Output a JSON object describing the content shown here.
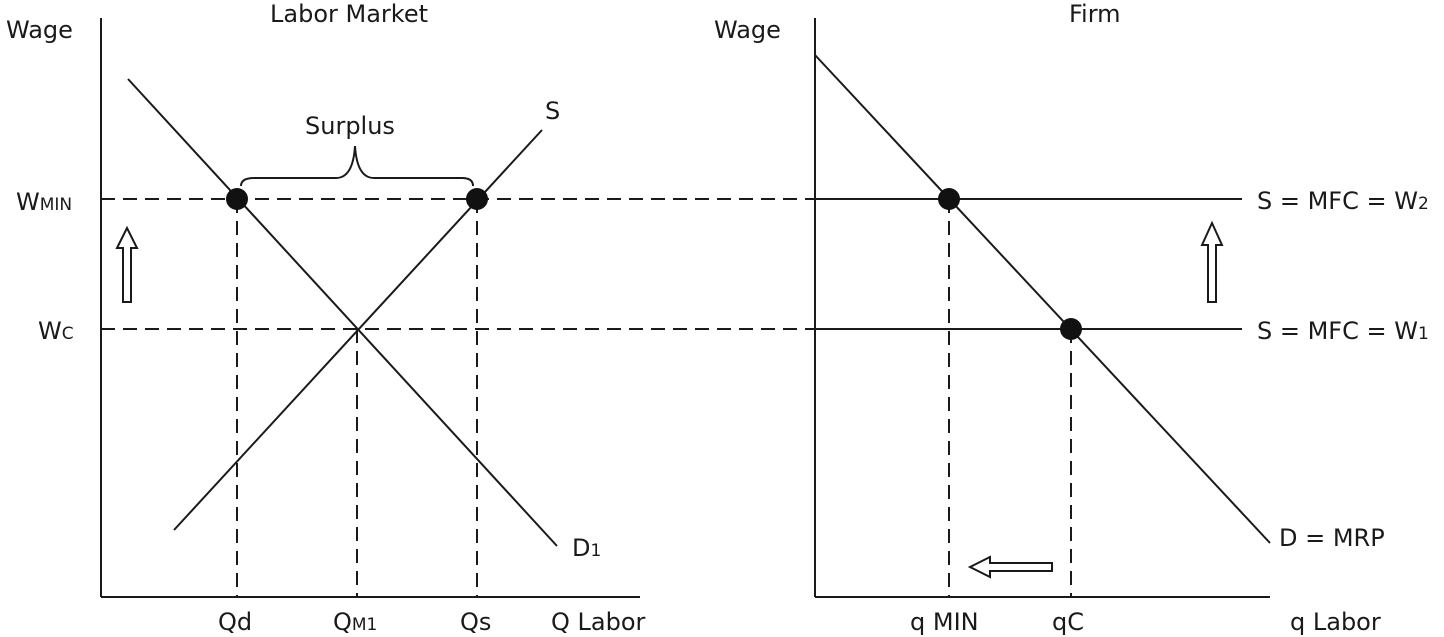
{
  "left_panel": {
    "title": "Labor Market",
    "y_axis_label": "Wage",
    "x_axis_label": "Q Labor",
    "w_min_main": "W",
    "w_min_sub": "MIN",
    "w_c_main": "W",
    "w_c_sub": "C",
    "supply_label": "S",
    "demand_main": "D",
    "demand_sub": "1",
    "surplus_label": "Surplus",
    "qd_label": "Qd",
    "qm_main": "Q",
    "qm_sub": "M1",
    "qs_label": "Qs"
  },
  "right_panel": {
    "title": "Firm",
    "y_axis_label": "Wage",
    "x_axis_label": "q Labor",
    "s2_main": "S = MFC = W",
    "s2_sub": "2",
    "s1_main": "S = MFC = W",
    "s1_sub": "1",
    "demand_label": "D = MRP",
    "q_min_label": "q MIN",
    "q_c_label": "qC"
  }
}
